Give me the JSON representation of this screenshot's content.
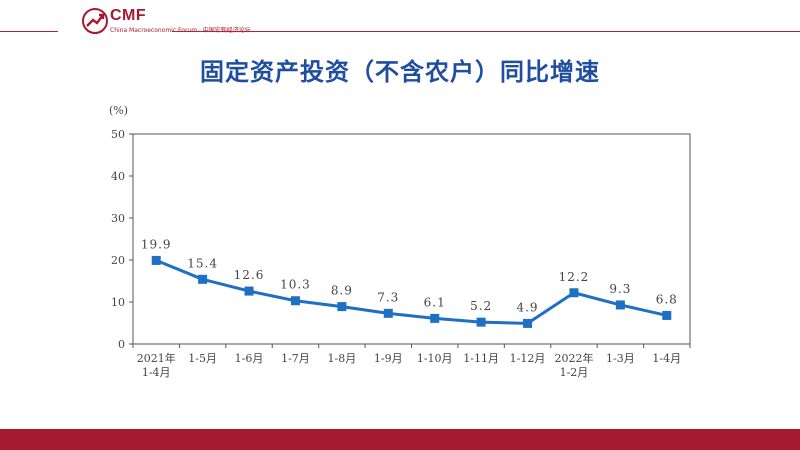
{
  "header": {
    "logo_text": "CMF",
    "logo_subtitle": "China Macroeconomic Forum · 中国宏观经济论坛",
    "accent_color": "#a6192e"
  },
  "page": {
    "title": "固定资产投资（不含农户）同比增速"
  },
  "chart_data": {
    "type": "line",
    "title": "",
    "xlabel": "",
    "ylabel": "(%)",
    "ylim": [
      0,
      50
    ],
    "yticks": [
      0,
      10,
      20,
      30,
      40,
      50
    ],
    "grid": false,
    "categories": [
      [
        "2021年",
        "1-4月"
      ],
      [
        "1-5月"
      ],
      [
        "1-6月"
      ],
      [
        "1-7月"
      ],
      [
        "1-8月"
      ],
      [
        "1-9月"
      ],
      [
        "1-10月"
      ],
      [
        "1-11月"
      ],
      [
        "1-12月"
      ],
      [
        "2022年",
        "1-2月"
      ],
      [
        "1-3月"
      ],
      [
        "1-4月"
      ]
    ],
    "values": [
      19.9,
      15.4,
      12.6,
      10.3,
      8.9,
      7.3,
      6.1,
      5.2,
      4.9,
      12.2,
      9.3,
      6.8
    ],
    "labels": [
      "19.9",
      "15.4",
      "12.6",
      "10.3",
      "8.9",
      "7.3",
      "6.1",
      "5.2",
      "4.9",
      "12.2",
      "9.3",
      "6.8"
    ],
    "series_color": "#1f6fc5"
  }
}
